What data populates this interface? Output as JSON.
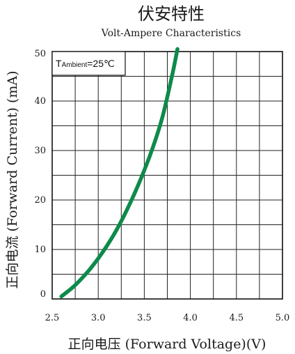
{
  "title": {
    "cn": "伏安特性",
    "en": "Volt-Ampere Characteristics"
  },
  "annotation": {
    "prefix": "T",
    "subscript": "Ambient",
    "value": "=25℃"
  },
  "chart_data": {
    "type": "line",
    "title": "伏安特性",
    "subtitle": "Volt-Ampere Characteristics",
    "xlabel": "正向电压 (Forward Voltage)(V)",
    "ylabel": "正向电流 (Forward Current) (mA)",
    "xlim": [
      2.5,
      5.0
    ],
    "ylim": [
      0,
      50
    ],
    "xticks": [
      {
        "v": 2.5,
        "label": "2.5"
      },
      {
        "v": 3.0,
        "label": "3.0"
      },
      {
        "v": 3.5,
        "label": "3.5"
      },
      {
        "v": 4.0,
        "label": "4.0"
      },
      {
        "v": 4.5,
        "label": "4.5"
      },
      {
        "v": 5.0,
        "label": "5.0"
      }
    ],
    "yticks": [
      {
        "v": 0,
        "label": "0"
      },
      {
        "v": 10,
        "label": "10"
      },
      {
        "v": 20,
        "label": "20"
      },
      {
        "v": 30,
        "label": "30"
      },
      {
        "v": 40,
        "label": "40"
      },
      {
        "v": 50,
        "label": "50"
      }
    ],
    "grid": true,
    "series": [
      {
        "color": "#0e8a4a",
        "x": [
          2.6,
          2.75,
          2.9,
          3.05,
          3.2,
          3.35,
          3.5,
          3.6,
          3.7,
          3.8,
          3.86
        ],
        "y": [
          0.5,
          2.8,
          5.8,
          9.5,
          14.0,
          19.5,
          26.0,
          31.0,
          37.0,
          45.0,
          50.5
        ]
      }
    ]
  }
}
